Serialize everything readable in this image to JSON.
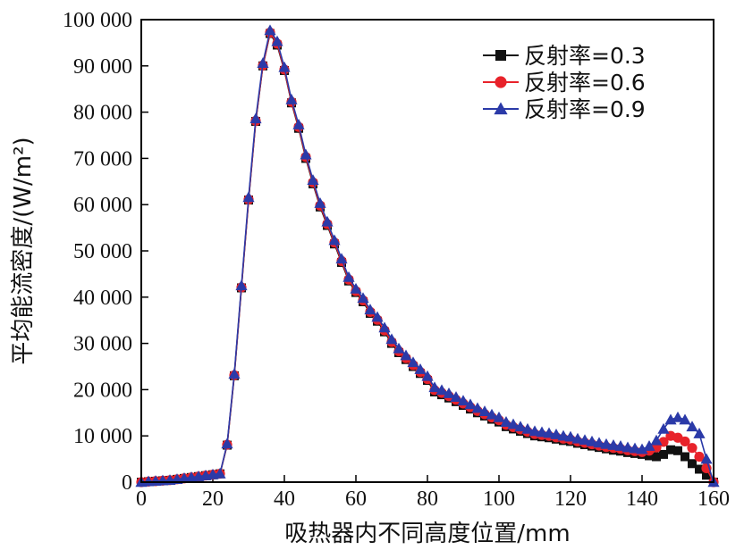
{
  "chart_data": {
    "type": "line",
    "xlabel": "吸热器内不同高度位置/mm",
    "ylabel": "平均能流密度/(W/m²)",
    "xlim": [
      0,
      160
    ],
    "ylim": [
      0,
      100000
    ],
    "xticks": [
      0,
      20,
      40,
      60,
      80,
      100,
      120,
      140,
      160
    ],
    "yticks": [
      0,
      10000,
      20000,
      30000,
      40000,
      50000,
      60000,
      70000,
      80000,
      90000,
      100000
    ],
    "xtick_labels": [
      "0",
      "20",
      "40",
      "60",
      "80",
      "100",
      "120",
      "140",
      "160"
    ],
    "ytick_labels": [
      "0",
      "10 000",
      "20 000",
      "30 000",
      "40 000",
      "50 000",
      "60 000",
      "70 000",
      "80 000",
      "90 000",
      "100 000"
    ],
    "grid": false,
    "legend_position": "top-right",
    "x": [
      0,
      2,
      4,
      6,
      8,
      10,
      12,
      14,
      16,
      18,
      20,
      22,
      24,
      26,
      28,
      30,
      32,
      34,
      36,
      38,
      40,
      42,
      44,
      46,
      48,
      50,
      52,
      54,
      56,
      58,
      60,
      62,
      64,
      66,
      68,
      70,
      72,
      74,
      76,
      78,
      80,
      82,
      84,
      86,
      88,
      90,
      92,
      94,
      96,
      98,
      100,
      102,
      104,
      106,
      108,
      110,
      112,
      114,
      116,
      118,
      120,
      122,
      124,
      126,
      128,
      130,
      132,
      134,
      136,
      138,
      140,
      142,
      144,
      146,
      148,
      150,
      152,
      154,
      156,
      158,
      160
    ],
    "series": [
      {
        "name": "反射率=0.3",
        "color": "#111111",
        "marker": "square",
        "values": [
          0,
          100,
          200,
          300,
          400,
          600,
          800,
          1000,
          1200,
          1400,
          1600,
          1800,
          8000,
          23000,
          42000,
          61000,
          78000,
          90000,
          97000,
          94500,
          89000,
          82000,
          76500,
          70000,
          64500,
          59500,
          55500,
          51500,
          47500,
          43500,
          41000,
          39000,
          36500,
          34800,
          32500,
          30000,
          28000,
          26500,
          25000,
          23500,
          22000,
          19500,
          18900,
          18200,
          17400,
          16600,
          15800,
          15000,
          14300,
          13600,
          13000,
          12000,
          11500,
          11000,
          10500,
          10000,
          9800,
          9600,
          9300,
          9000,
          8800,
          8400,
          8100,
          7800,
          7500,
          7200,
          6900,
          6700,
          6400,
          6200,
          6000,
          5700,
          5500,
          6000,
          7000,
          6800,
          5500,
          4000,
          2800,
          1500,
          0
        ]
      },
      {
        "name": "反射率=0.6",
        "color": "#e8222a",
        "marker": "circle",
        "values": [
          0,
          120,
          220,
          320,
          420,
          620,
          820,
          1020,
          1220,
          1420,
          1620,
          1820,
          8100,
          23100,
          42100,
          61100,
          78100,
          90100,
          97200,
          94800,
          89200,
          82200,
          76800,
          70300,
          64800,
          59800,
          55800,
          51800,
          47800,
          43800,
          41300,
          39300,
          36800,
          35100,
          32800,
          30300,
          28300,
          26800,
          25300,
          23800,
          22300,
          19900,
          19300,
          18600,
          17800,
          17000,
          16200,
          15400,
          14700,
          14000,
          13400,
          12400,
          11900,
          11400,
          10900,
          10400,
          10200,
          10000,
          9700,
          9400,
          9200,
          8800,
          8500,
          8200,
          7900,
          7600,
          7400,
          7200,
          6900,
          6700,
          6500,
          6800,
          7500,
          8700,
          10000,
          9600,
          8800,
          7400,
          5500,
          3000,
          0
        ]
      },
      {
        "name": "反射率=0.9",
        "color": "#2b3aa8",
        "marker": "triangle",
        "values": [
          0,
          140,
          240,
          340,
          440,
          640,
          840,
          1040,
          1240,
          1440,
          1640,
          1840,
          8300,
          23400,
          42500,
          61600,
          78600,
          90600,
          97700,
          95300,
          89700,
          82700,
          77300,
          70800,
          65300,
          60300,
          56300,
          52300,
          48300,
          44300,
          41800,
          39800,
          37300,
          35700,
          33400,
          30900,
          28900,
          27400,
          25900,
          24400,
          22900,
          20500,
          19900,
          19200,
          18400,
          17600,
          16800,
          16000,
          15300,
          14600,
          14000,
          13000,
          12500,
          12000,
          11500,
          11000,
          10800,
          10600,
          10300,
          10000,
          9800,
          9400,
          9100,
          8800,
          8500,
          8200,
          8000,
          7800,
          7500,
          7300,
          7100,
          7800,
          9000,
          11500,
          13500,
          14000,
          13500,
          12000,
          10500,
          5000,
          0
        ]
      }
    ]
  }
}
